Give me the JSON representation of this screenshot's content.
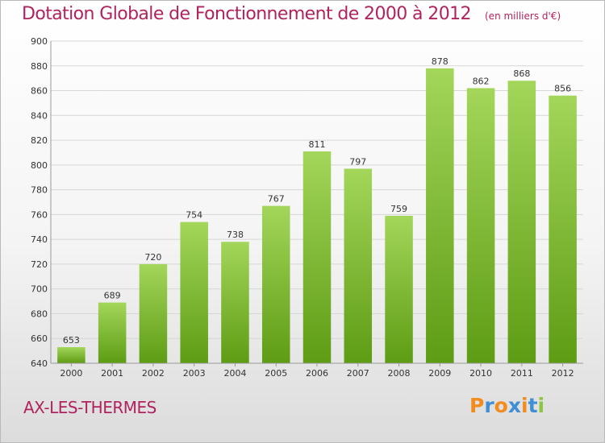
{
  "header": {
    "title": "Dotation Globale de Fonctionnement de 2000 à 2012",
    "subtitle": "(en milliers d'€)"
  },
  "commune": "AX-LES-THERMES",
  "logo": {
    "text": "Proxiti",
    "colors": [
      "#f28c1e",
      "#3f8fd6",
      "#f28c1e",
      "#3f8fd6",
      "#f28c1e",
      "#3f8fd6",
      "#8dc63f"
    ]
  },
  "colors": {
    "bar_top": "#a3d65a",
    "bar_bottom": "#5e9c14",
    "accent": "#b0235e",
    "grid": "#d6d6d6"
  },
  "chart_data": {
    "type": "bar",
    "categories": [
      "2000",
      "2001",
      "2002",
      "2003",
      "2004",
      "2005",
      "2006",
      "2007",
      "2008",
      "2009",
      "2010",
      "2011",
      "2012"
    ],
    "values": [
      653,
      689,
      720,
      754,
      738,
      767,
      811,
      797,
      759,
      878,
      862,
      868,
      856
    ],
    "ylim": [
      640,
      900
    ],
    "yticks": [
      640,
      660,
      680,
      700,
      720,
      740,
      760,
      780,
      800,
      820,
      840,
      860,
      880,
      900
    ],
    "grid": true
  }
}
